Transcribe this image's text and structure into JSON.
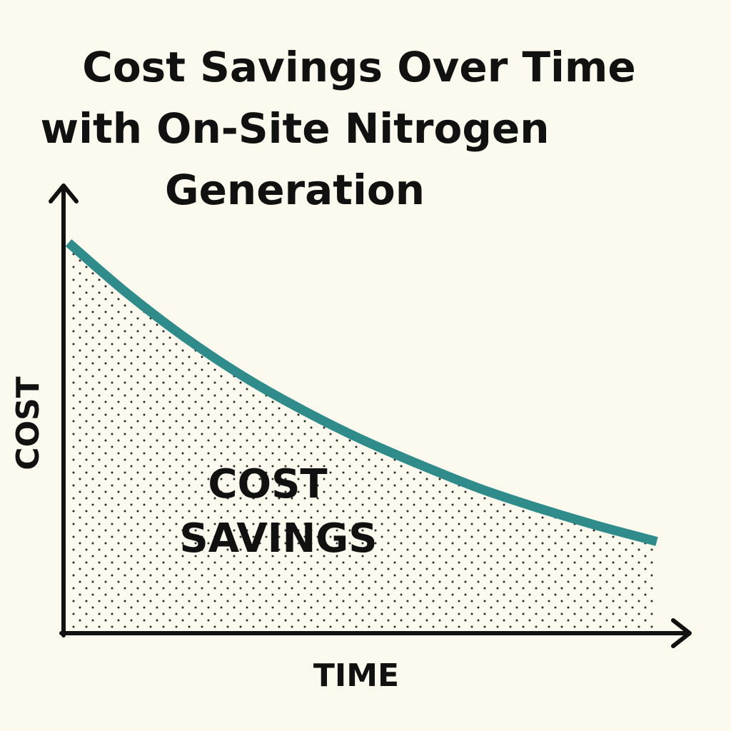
{
  "chart_data": {
    "type": "area",
    "title_lines": [
      "Cost Savings Over Time",
      "with On-Site Nitrogen",
      "Generation"
    ],
    "xlabel": "TIME",
    "ylabel": "COST",
    "annotation_lines": [
      "COST",
      "SAVINGS"
    ],
    "x_ticks_shown": false,
    "y_ticks_shown": false,
    "grid": false,
    "legend": "none",
    "xlim": [
      0,
      1
    ],
    "ylim": [
      0,
      1
    ],
    "series": [
      {
        "x": [
          0.0,
          0.1,
          0.2,
          0.3,
          0.4,
          0.5,
          0.6,
          0.7,
          0.8,
          0.9,
          1.0
        ],
        "values": [
          1.0,
          0.87,
          0.755,
          0.655,
          0.57,
          0.495,
          0.43,
          0.37,
          0.32,
          0.275,
          0.235
        ]
      }
    ],
    "colors": {
      "line": "#2f8c8a",
      "axes": "#111111",
      "text": "#111111",
      "dots": "#2a2a2a",
      "background": "#fcf9ee"
    }
  }
}
